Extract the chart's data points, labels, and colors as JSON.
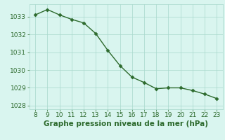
{
  "x": [
    8,
    9,
    10,
    11,
    12,
    13,
    14,
    15,
    16,
    17,
    18,
    19,
    20,
    21,
    22,
    23
  ],
  "y": [
    1033.1,
    1033.4,
    1033.1,
    1032.85,
    1032.65,
    1032.05,
    1031.1,
    1030.25,
    1029.6,
    1029.3,
    1028.95,
    1029.0,
    1029.0,
    1028.85,
    1028.65,
    1028.4
  ],
  "ylim": [
    1027.8,
    1033.7
  ],
  "xlim": [
    7.5,
    23.5
  ],
  "yticks": [
    1028,
    1029,
    1030,
    1031,
    1032,
    1033
  ],
  "xticks": [
    8,
    9,
    10,
    11,
    12,
    13,
    14,
    15,
    16,
    17,
    18,
    19,
    20,
    21,
    22,
    23
  ],
  "line_color": "#2d6a2d",
  "marker_color": "#2d6a2d",
  "bg_color": "#d9f5ef",
  "grid_color": "#a8d8cc",
  "xlabel": "Graphe pression niveau de la mer (hPa)",
  "xlabel_color": "#2d6a2d",
  "tick_color": "#2d6a2d",
  "xlabel_fontsize": 7.5,
  "tick_fontsize": 6.5,
  "line_width": 1.0,
  "marker_size": 2.5
}
